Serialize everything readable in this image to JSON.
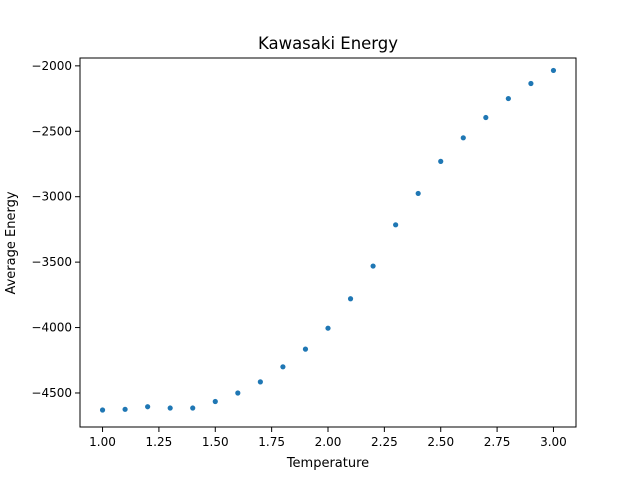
{
  "chart_data": {
    "type": "scatter",
    "title": "Kawasaki Energy",
    "xlabel": "Temperature",
    "ylabel": "Average Energy",
    "xlim": [
      0.9,
      3.1
    ],
    "ylim": [
      -4760,
      -1940
    ],
    "xticks": [
      1.0,
      1.25,
      1.5,
      1.75,
      2.0,
      2.25,
      2.5,
      2.75,
      3.0
    ],
    "xtick_labels": [
      "1.00",
      "1.25",
      "1.50",
      "1.75",
      "2.00",
      "2.25",
      "2.50",
      "2.75",
      "3.00"
    ],
    "yticks": [
      -4500,
      -4000,
      -3500,
      -3000,
      -2500,
      -2000
    ],
    "ytick_labels": [
      "−4500",
      "−4000",
      "−3500",
      "−3000",
      "−2500",
      "−2000"
    ],
    "grid": false,
    "marker_color": "#1f77b4",
    "series": [
      {
        "x": [
          1.0,
          1.1,
          1.2,
          1.3,
          1.4,
          1.5,
          1.6,
          1.7,
          1.8,
          1.9,
          2.0,
          2.1,
          2.2,
          2.3,
          2.4,
          2.5,
          2.6,
          2.7,
          2.8,
          2.9,
          3.0
        ],
        "y": [
          -4630,
          -4625,
          -4605,
          -4615,
          -4615,
          -4565,
          -4500,
          -4415,
          -4300,
          -4165,
          -4005,
          -3780,
          -3530,
          -3215,
          -2975,
          -2730,
          -2550,
          -2395,
          -2250,
          -2135,
          -2035
        ]
      }
    ]
  }
}
